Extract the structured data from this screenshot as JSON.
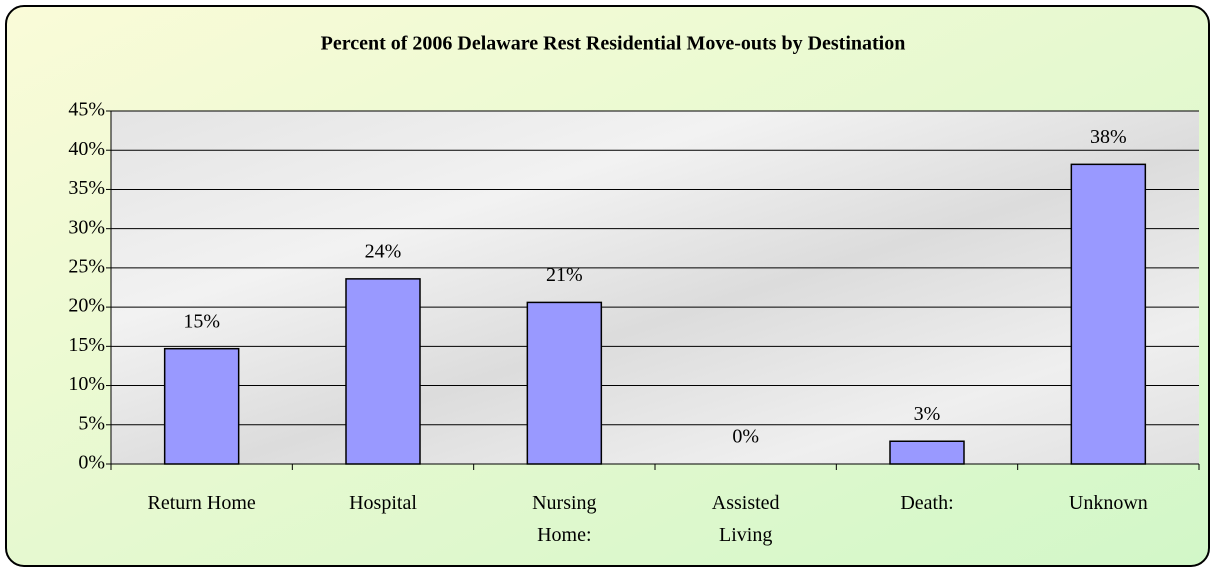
{
  "chart_data": {
    "type": "bar",
    "title": "Percent of 2006 Delaware Rest Residential Move-outs by Destination",
    "categories": [
      "Return Home",
      "Hospital",
      "Nursing\nHome:",
      "Assisted\nLiving",
      "Death:",
      "Unknown"
    ],
    "values": [
      14.7,
      23.6,
      20.6,
      0,
      2.9,
      38.2
    ],
    "value_labels": [
      "15%",
      "24%",
      "21%",
      "0%",
      "3%",
      "38%"
    ],
    "color": "#9999ff",
    "ylim": [
      0,
      45
    ],
    "yticks": [
      {
        "value": 0,
        "label": "0%"
      },
      {
        "value": 5,
        "label": "5%"
      },
      {
        "value": 10,
        "label": "10%"
      },
      {
        "value": 15,
        "label": "15%"
      },
      {
        "value": 20,
        "label": "20%"
      },
      {
        "value": 25,
        "label": "25%"
      },
      {
        "value": 30,
        "label": "30%"
      },
      {
        "value": 35,
        "label": "35%"
      },
      {
        "value": 40,
        "label": "40%"
      },
      {
        "value": 45,
        "label": "45%"
      }
    ],
    "grid": true
  }
}
